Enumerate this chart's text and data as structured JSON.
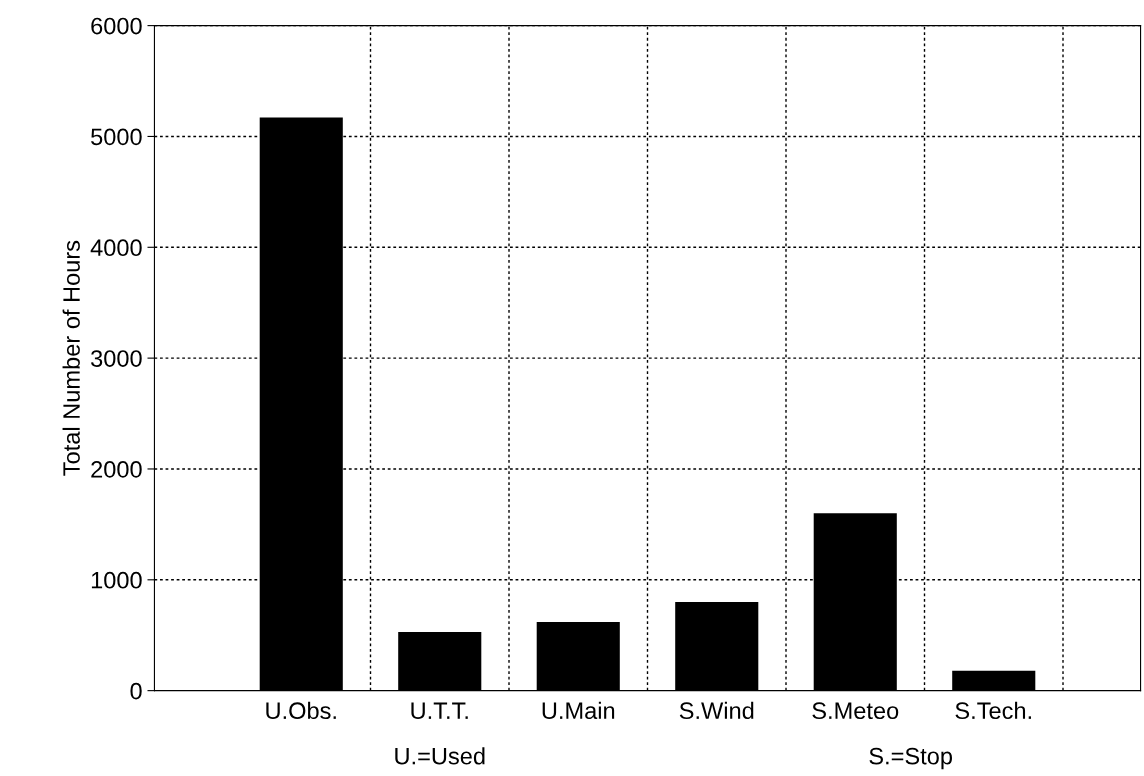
{
  "chart_data": {
    "type": "bar",
    "ylabel": "Total Number of Hours",
    "categories": [
      "U.Obs.",
      "U.T.T.",
      "U.Main",
      "S.Wind",
      "S.Meteo",
      "S.Tech."
    ],
    "values": [
      5170,
      530,
      620,
      800,
      1600,
      180
    ],
    "color": "#000000",
    "ylim": [
      0,
      6000
    ],
    "yticks": [
      0,
      1000,
      2000,
      3000,
      4000,
      5000,
      6000
    ],
    "grid": true,
    "annotations": [
      "U.=Used",
      "S.=Stop"
    ]
  }
}
